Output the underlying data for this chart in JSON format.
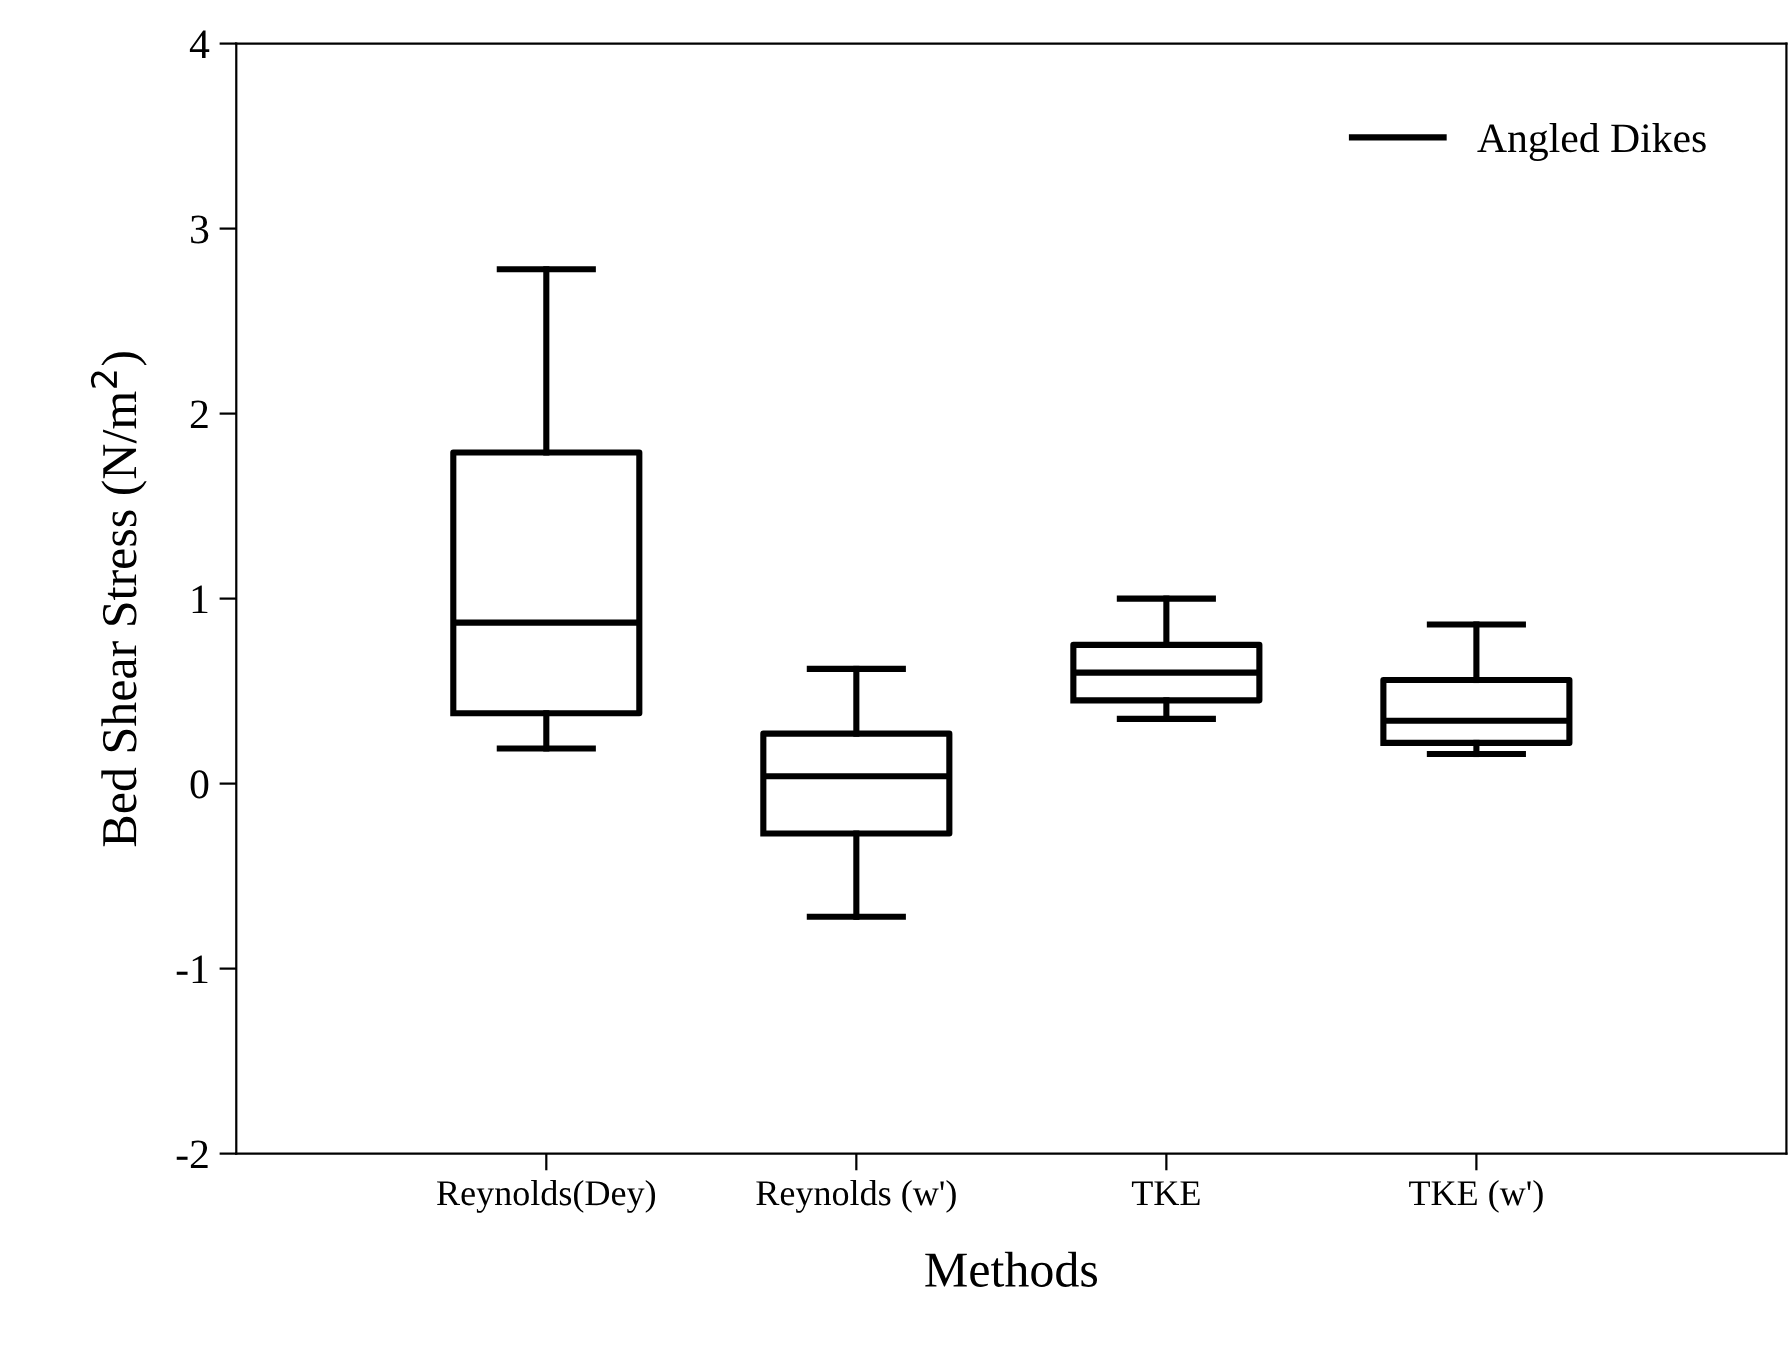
{
  "chart_data": {
    "type": "box",
    "xlabel": "Methods",
    "ylabel": "Bed Shear Stress (N/m$^{2}$)",
    "categories": [
      "Reynolds(Dey)",
      "Reynolds (w')",
      "TKE",
      "TKE (w')"
    ],
    "series": [
      {
        "name": "Angled Dikes",
        "color": "#000000",
        "boxes": [
          {
            "low": 0.19,
            "q1": 0.38,
            "median": 0.87,
            "q3": 1.79,
            "high": 2.78
          },
          {
            "low": -0.72,
            "q1": -0.27,
            "median": 0.04,
            "q3": 0.27,
            "high": 0.62
          },
          {
            "low": 0.35,
            "q1": 0.45,
            "median": 0.6,
            "q3": 0.75,
            "high": 1.0
          },
          {
            "low": 0.16,
            "q1": 0.22,
            "median": 0.34,
            "q3": 0.56,
            "high": 0.86
          }
        ]
      }
    ],
    "ylim": [
      -2,
      4
    ],
    "yticks": [
      -2,
      -1,
      0,
      1,
      2,
      3,
      4
    ],
    "grid": false,
    "legend": "top right"
  }
}
